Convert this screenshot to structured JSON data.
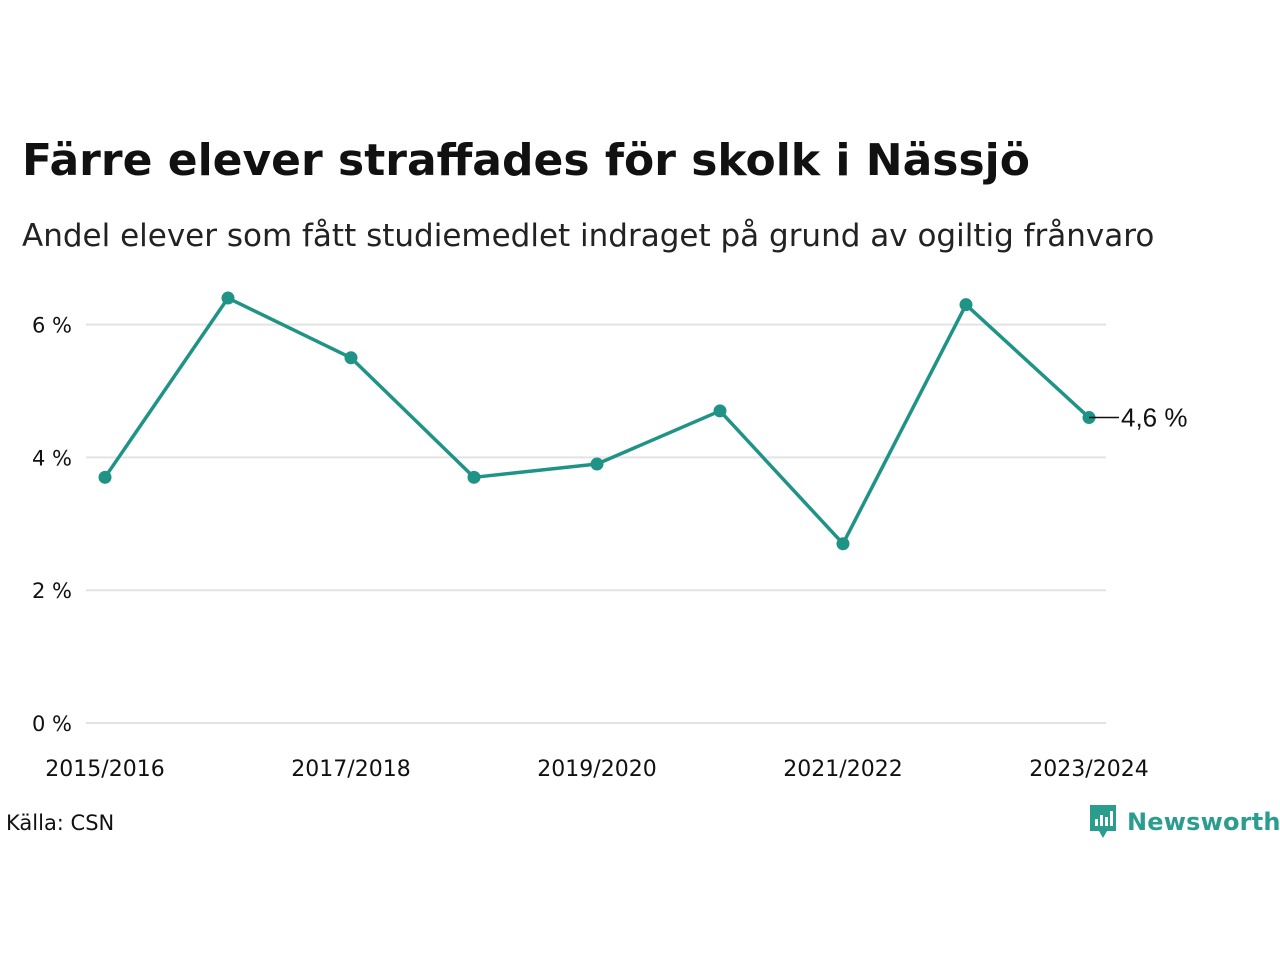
{
  "title": "Färre elever straffades för skolk i Nässjö",
  "subtitle": "Andel elever som fått studiemedlet indraget på grund av ogiltig frånvaro",
  "source": "Källa: CSN",
  "logo_text": "Newsworthy",
  "colors": {
    "line": "#1f9385",
    "grid": "#e3e3e3",
    "logo": "#2a9d8f"
  },
  "chart_data": {
    "type": "line",
    "x": [
      "2015/2016",
      "2016/2017",
      "2017/2018",
      "2018/2019",
      "2019/2020",
      "2020/2021",
      "2021/2022",
      "2022/2023",
      "2023/2024"
    ],
    "x_tick_labels": [
      "2015/2016",
      "",
      "2017/2018",
      "",
      "2019/2020",
      "",
      "2021/2022",
      "",
      "2023/2024"
    ],
    "series": [
      {
        "name": "",
        "values": [
          3.7,
          6.4,
          5.5,
          3.7,
          3.9,
          4.7,
          2.7,
          6.3,
          4.6
        ]
      }
    ],
    "last_value_label": "4,6 %",
    "yticks": [
      0,
      2,
      4,
      6
    ],
    "ytick_labels": [
      "0 %",
      "2 %",
      "4 %",
      "6 %"
    ],
    "ylim": [
      0,
      6.5
    ],
    "grid": true,
    "legend": "none"
  }
}
